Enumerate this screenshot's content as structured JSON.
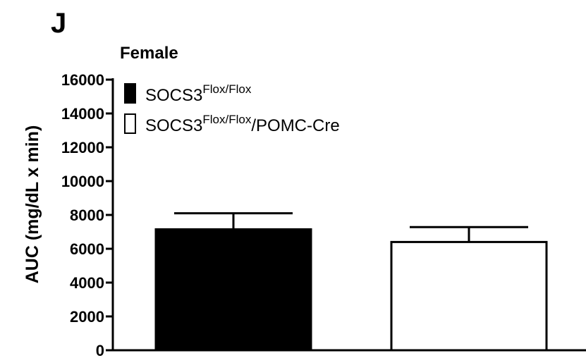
{
  "panel_label": "J",
  "chart_data": {
    "type": "bar",
    "title": "Female",
    "xlabel": "",
    "ylabel": "AUC (mg/dL x min)",
    "ylim": [
      0,
      16000
    ],
    "yticks": [
      0,
      2000,
      4000,
      6000,
      8000,
      10000,
      12000,
      14000,
      16000
    ],
    "ytick_labels": [
      "0",
      "2000",
      "4000",
      "6000",
      "8000",
      "10000",
      "12000",
      "14000",
      "16000"
    ],
    "grid": false,
    "legend_position": "top-left",
    "categories": [
      "SOCS3 Flox/Flox",
      "SOCS3 Flox/Flox/POMC-Cre"
    ],
    "values": [
      7150,
      6400
    ],
    "errors": [
      950,
      880
    ],
    "bar_colors": [
      "#000000",
      "#ffffff"
    ],
    "legend": [
      {
        "base": "SOCS3",
        "sup": "Flox/Flox",
        "suffix": "",
        "swatch": "#000000"
      },
      {
        "base": "SOCS3",
        "sup": "Flox/Flox",
        "suffix": "/POMC-Cre",
        "swatch": "#ffffff"
      }
    ]
  }
}
